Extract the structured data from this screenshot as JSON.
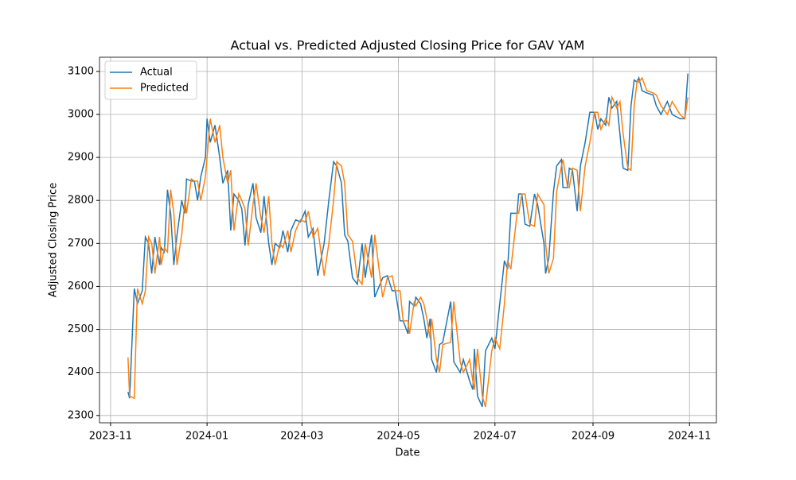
{
  "chart_data": {
    "type": "line",
    "title": "Actual vs. Predicted Adjusted Closing Price for GAV YAM",
    "xlabel": "Date",
    "ylabel": "Adjusted Closing Price",
    "x": [
      "2023-11-12",
      "2023-11-13",
      "2023-11-16",
      "2023-11-18",
      "2023-11-21",
      "2023-11-23",
      "2023-11-25",
      "2023-11-27",
      "2023-11-29",
      "2023-12-02",
      "2023-12-03",
      "2023-12-05",
      "2023-12-07",
      "2023-12-09",
      "2023-12-11",
      "2023-12-13",
      "2023-12-16",
      "2023-12-18",
      "2023-12-19",
      "2023-12-22",
      "2023-12-24",
      "2023-12-26",
      "2023-12-28",
      "2023-12-31",
      "2024-01-01",
      "2024-01-03",
      "2024-01-06",
      "2024-01-09",
      "2024-01-11",
      "2024-01-14",
      "2024-01-16",
      "2024-01-18",
      "2024-01-21",
      "2024-01-23",
      "2024-01-25",
      "2024-01-27",
      "2024-01-30",
      "2024-02-01",
      "2024-02-04",
      "2024-02-06",
      "2024-02-09",
      "2024-02-11",
      "2024-02-13",
      "2024-02-16",
      "2024-02-18",
      "2024-02-21",
      "2024-02-23",
      "2024-02-26",
      "2024-02-29",
      "2024-03-03",
      "2024-03-05",
      "2024-03-08",
      "2024-03-11",
      "2024-03-15",
      "2024-03-18",
      "2024-03-21",
      "2024-03-23",
      "2024-03-26",
      "2024-03-28",
      "2024-03-30",
      "2024-04-02",
      "2024-04-05",
      "2024-04-08",
      "2024-04-10",
      "2024-04-14",
      "2024-04-16",
      "2024-04-21",
      "2024-04-24",
      "2024-04-27",
      "2024-04-29",
      "2024-05-02",
      "2024-05-04",
      "2024-05-07",
      "2024-05-08",
      "2024-05-11",
      "2024-05-12",
      "2024-05-15",
      "2024-05-17",
      "2024-05-19",
      "2024-05-21",
      "2024-05-22",
      "2024-05-25",
      "2024-05-27",
      "2024-05-29",
      "2024-06-03",
      "2024-06-05",
      "2024-06-09",
      "2024-06-11",
      "2024-06-15",
      "2024-06-17",
      "2024-06-18",
      "2024-06-20",
      "2024-06-23",
      "2024-06-25",
      "2024-06-29",
      "2024-07-01",
      "2024-07-04",
      "2024-07-07",
      "2024-07-09",
      "2024-07-11",
      "2024-07-15",
      "2024-07-16",
      "2024-07-18",
      "2024-07-20",
      "2024-07-23",
      "2024-07-26",
      "2024-07-28",
      "2024-08-01",
      "2024-08-02",
      "2024-08-04",
      "2024-08-07",
      "2024-08-09",
      "2024-08-12",
      "2024-08-13",
      "2024-08-16",
      "2024-08-17",
      "2024-08-19",
      "2024-08-22",
      "2024-08-24",
      "2024-08-27",
      "2024-08-30",
      "2024-09-02",
      "2024-09-04",
      "2024-09-06",
      "2024-09-09",
      "2024-09-11",
      "2024-09-13",
      "2024-09-16",
      "2024-09-18",
      "2024-09-20",
      "2024-09-23",
      "2024-09-25",
      "2024-09-27",
      "2024-09-29",
      "2024-09-30",
      "2024-10-02",
      "2024-10-05",
      "2024-10-09",
      "2024-10-11",
      "2024-10-14",
      "2024-10-18",
      "2024-10-21",
      "2024-10-26",
      "2024-10-29",
      "2024-10-31"
    ],
    "series": [
      {
        "name": "Actual",
        "color": "#1f77b4",
        "values": [
          2355,
          2340,
          2595,
          2560,
          2590,
          2715,
          2700,
          2630,
          2715,
          2650,
          2690,
          2680,
          2825,
          2770,
          2650,
          2720,
          2800,
          2770,
          2850,
          2845,
          2845,
          2800,
          2855,
          2900,
          2990,
          2935,
          2975,
          2900,
          2840,
          2870,
          2730,
          2815,
          2800,
          2780,
          2695,
          2790,
          2840,
          2760,
          2725,
          2810,
          2700,
          2650,
          2700,
          2690,
          2730,
          2680,
          2730,
          2755,
          2750,
          2775,
          2715,
          2735,
          2625,
          2700,
          2800,
          2890,
          2880,
          2840,
          2720,
          2705,
          2620,
          2605,
          2700,
          2620,
          2720,
          2575,
          2620,
          2625,
          2590,
          2590,
          2520,
          2520,
          2490,
          2565,
          2555,
          2575,
          2560,
          2525,
          2480,
          2525,
          2430,
          2400,
          2465,
          2470,
          2565,
          2425,
          2400,
          2430,
          2380,
          2360,
          2455,
          2345,
          2320,
          2450,
          2480,
          2455,
          2560,
          2660,
          2640,
          2770,
          2770,
          2815,
          2815,
          2745,
          2740,
          2815,
          2790,
          2700,
          2630,
          2665,
          2820,
          2880,
          2895,
          2830,
          2830,
          2875,
          2870,
          2775,
          2880,
          2935,
          3005,
          3005,
          2965,
          2990,
          2975,
          3040,
          3015,
          3030,
          2955,
          2875,
          2870,
          3020,
          3080,
          3075,
          3085,
          3055,
          3050,
          3045,
          3020,
          3000,
          3030,
          3000,
          2990,
          2990,
          3095
        ]
      },
      {
        "name": "Predicted",
        "color": "#ff7f0e",
        "values": [
          2435,
          2345,
          2340,
          2595,
          2560,
          2590,
          2715,
          2700,
          2630,
          2715,
          2650,
          2690,
          2680,
          2825,
          2770,
          2650,
          2720,
          2800,
          2770,
          2850,
          2845,
          2845,
          2800,
          2855,
          2900,
          2990,
          2935,
          2975,
          2900,
          2840,
          2870,
          2730,
          2815,
          2800,
          2780,
          2695,
          2790,
          2840,
          2760,
          2725,
          2810,
          2700,
          2650,
          2700,
          2690,
          2730,
          2680,
          2730,
          2755,
          2750,
          2775,
          2715,
          2735,
          2625,
          2700,
          2800,
          2890,
          2880,
          2840,
          2720,
          2705,
          2620,
          2605,
          2700,
          2620,
          2720,
          2575,
          2620,
          2625,
          2590,
          2590,
          2520,
          2520,
          2490,
          2565,
          2555,
          2575,
          2560,
          2525,
          2480,
          2525,
          2430,
          2400,
          2465,
          2470,
          2565,
          2425,
          2400,
          2430,
          2380,
          2360,
          2455,
          2345,
          2320,
          2450,
          2480,
          2455,
          2560,
          2660,
          2640,
          2770,
          2770,
          2815,
          2815,
          2745,
          2740,
          2815,
          2790,
          2700,
          2630,
          2665,
          2820,
          2880,
          2895,
          2830,
          2830,
          2875,
          2870,
          2775,
          2880,
          2935,
          3005,
          3005,
          2965,
          2990,
          2975,
          3040,
          3015,
          3030,
          2955,
          2875,
          2870,
          3020,
          3080,
          3075,
          3085,
          3055,
          3050,
          3045,
          3020,
          3000,
          3030,
          3000,
          2990,
          3040
        ]
      }
    ],
    "xlim": [
      "2023-10-25",
      "2024-11-18"
    ],
    "xticks": [
      {
        "value": "2023-11-01",
        "label": "2023-11"
      },
      {
        "value": "2024-01-01",
        "label": "2024-01"
      },
      {
        "value": "2024-03-01",
        "label": "2024-03"
      },
      {
        "value": "2024-05-01",
        "label": "2024-05"
      },
      {
        "value": "2024-07-01",
        "label": "2024-07"
      },
      {
        "value": "2024-09-01",
        "label": "2024-09"
      },
      {
        "value": "2024-11-01",
        "label": "2024-11"
      }
    ],
    "ylim": [
      2283,
      3133
    ],
    "yticks": [
      2300,
      2400,
      2500,
      2600,
      2700,
      2800,
      2900,
      3000,
      3100
    ],
    "grid": true,
    "legend": "upper left"
  }
}
